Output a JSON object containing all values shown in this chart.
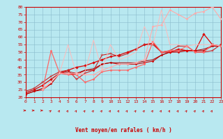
{
  "title": "",
  "xlabel": "Vent moyen/en rafales ( km/h )",
  "xlim": [
    0,
    23
  ],
  "ylim": [
    20,
    80
  ],
  "yticks": [
    20,
    25,
    30,
    35,
    40,
    45,
    50,
    55,
    60,
    65,
    70,
    75,
    80
  ],
  "xticks": [
    0,
    1,
    2,
    3,
    4,
    5,
    6,
    7,
    8,
    9,
    10,
    11,
    12,
    13,
    14,
    15,
    16,
    17,
    18,
    19,
    20,
    21,
    22,
    23
  ],
  "bg_color": "#b8e8f0",
  "grid_color": "#88bbcc",
  "series": [
    {
      "x": [
        0,
        1,
        2,
        3,
        4,
        5,
        6,
        7,
        8,
        9,
        10,
        11,
        12,
        13,
        14,
        15,
        16,
        17,
        18,
        19,
        20,
        21,
        22,
        23
      ],
      "y": [
        22,
        24,
        25,
        29,
        36,
        36,
        35,
        38,
        38,
        42,
        43,
        42,
        42,
        42,
        43,
        44,
        48,
        50,
        50,
        51,
        51,
        51,
        54,
        54
      ],
      "color": "#cc0000",
      "lw": 0.8,
      "marker": "D",
      "ms": 1.5
    },
    {
      "x": [
        0,
        1,
        2,
        3,
        4,
        5,
        6,
        7,
        8,
        9,
        10,
        11,
        12,
        13,
        14,
        15,
        16,
        17,
        18,
        19,
        20,
        21,
        22,
        23
      ],
      "y": [
        22,
        24,
        26,
        29,
        36,
        37,
        36,
        38,
        39,
        42,
        43,
        43,
        43,
        43,
        44,
        45,
        48,
        50,
        51,
        51,
        51,
        52,
        54,
        54
      ],
      "color": "#aa0000",
      "lw": 0.7,
      "marker": null,
      "ms": 0
    },
    {
      "x": [
        0,
        1,
        2,
        3,
        4,
        5,
        6,
        7,
        8,
        9,
        10,
        11,
        12,
        13,
        14,
        15,
        16,
        17,
        18,
        19,
        20,
        21,
        22,
        23
      ],
      "y": [
        23,
        25,
        28,
        32,
        36,
        38,
        40,
        41,
        43,
        45,
        47,
        48,
        50,
        52,
        55,
        56,
        50,
        50,
        52,
        51,
        51,
        62,
        55,
        54
      ],
      "color": "#dd0000",
      "lw": 0.9,
      "marker": "D",
      "ms": 1.8
    },
    {
      "x": [
        0,
        1,
        2,
        3,
        4,
        5,
        6,
        7,
        8,
        9,
        10,
        11,
        12,
        13,
        14,
        15,
        16,
        17,
        18,
        19,
        20,
        21,
        22,
        23
      ],
      "y": [
        24,
        26,
        30,
        34,
        37,
        38,
        32,
        36,
        38,
        48,
        49,
        47,
        49,
        52,
        55,
        55,
        50,
        51,
        54,
        54,
        50,
        50,
        51,
        55
      ],
      "color": "#cc2222",
      "lw": 0.8,
      "marker": "+",
      "ms": 3
    },
    {
      "x": [
        2,
        3,
        4,
        5,
        6,
        7,
        8,
        9,
        10,
        11,
        12,
        13,
        14,
        15,
        16,
        17,
        18,
        19,
        20,
        21,
        22,
        23
      ],
      "y": [
        25,
        51,
        36,
        35,
        35,
        30,
        32,
        37,
        38,
        38,
        38,
        40,
        42,
        57,
        50,
        51,
        51,
        54,
        50,
        50,
        55,
        54
      ],
      "color": "#ff6666",
      "lw": 0.9,
      "marker": "D",
      "ms": 1.5
    },
    {
      "x": [
        2,
        3,
        4,
        5,
        6,
        7,
        8,
        9,
        10,
        11,
        12,
        13,
        14,
        15,
        16,
        17,
        18,
        19,
        20,
        21,
        22,
        23
      ],
      "y": [
        25,
        30,
        36,
        36,
        36,
        35,
        35,
        38,
        40,
        42,
        42,
        43,
        45,
        67,
        68,
        78,
        75,
        72,
        76,
        77,
        80,
        72
      ],
      "color": "#ffaaaa",
      "lw": 0.8,
      "marker": "D",
      "ms": 1.5
    },
    {
      "x": [
        2,
        3,
        4,
        5,
        6,
        7,
        8,
        9,
        10,
        11,
        12,
        13,
        14,
        15,
        16,
        17,
        18,
        19,
        20,
        21,
        22,
        23
      ],
      "y": [
        26,
        30,
        36,
        55,
        35,
        37,
        58,
        38,
        55,
        45,
        47,
        50,
        67,
        55,
        78,
        55,
        55,
        54,
        55,
        55,
        55,
        54
      ],
      "color": "#ffbbbb",
      "lw": 0.7,
      "marker": null,
      "ms": 0
    }
  ],
  "arrow_angles_deg": [
    0,
    0,
    0,
    30,
    45,
    45,
    45,
    45,
    45,
    45,
    45,
    45,
    45,
    45,
    45,
    45,
    45,
    45,
    45,
    45,
    45,
    45,
    45,
    45
  ]
}
